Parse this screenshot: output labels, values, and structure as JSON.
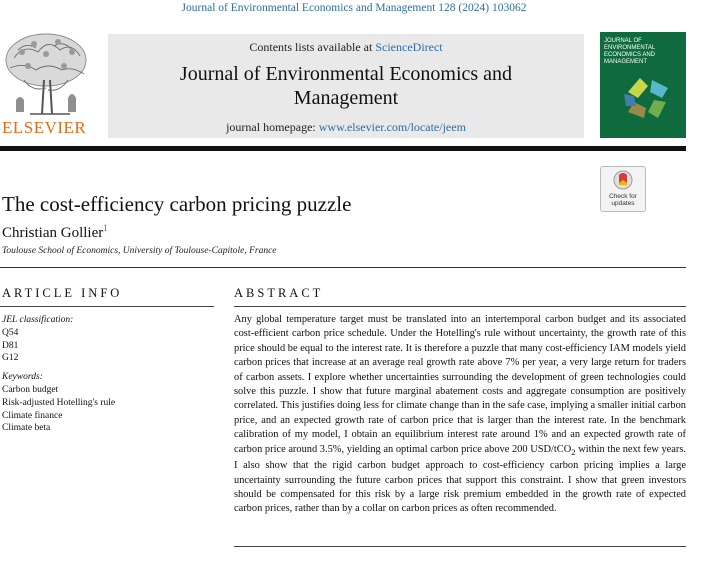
{
  "citation": {
    "text": "Journal of Environmental Economics and Management 128 (2024) 103062"
  },
  "masthead": {
    "publisher": "ELSEVIER",
    "contents_prefix": "Contents lists available at ",
    "contents_link": "ScienceDirect",
    "journal_title": "Journal of Environmental Economics and Management",
    "homepage_prefix": "journal homepage: ",
    "homepage_url": "www.elsevier.com/locate/jeem",
    "cover_title": "JOURNAL OF ENVIRONMENTAL ECONOMICS AND MANAGEMENT"
  },
  "colors": {
    "link": "#2b6ea6",
    "publisher": "#e36c1c",
    "cover": "#0f6a3d"
  },
  "check_updates": {
    "label": "Check for updates"
  },
  "article": {
    "title": "The cost-efficiency carbon pricing puzzle",
    "author": "Christian Gollier",
    "author_sup": "1",
    "affiliation": "Toulouse School of Economics, University of Toulouse-Capitole, France"
  },
  "article_info": {
    "heading": "ARTICLE INFO",
    "jel_label": "JEL classification:",
    "jel_codes": [
      "Q54",
      "D81",
      "G12"
    ],
    "keywords_label": "Keywords:",
    "keywords": [
      "Carbon budget",
      "Risk-adjusted Hotelling's rule",
      "Climate finance",
      "Climate beta"
    ]
  },
  "abstract": {
    "heading": "ABSTRACT",
    "text_1": "Any global temperature target must be translated into an intertemporal carbon budget and its associated cost-efficient carbon price schedule. Under the Hotelling's rule without uncertainty, the growth rate of this price should be equal to the interest rate. It is therefore a puzzle that many cost-efficiency IAM models yield carbon prices that increase at an average real growth rate above 7% per year, a very large return for traders of carbon assets. I explore whether uncertainties surrounding the development of green technologies could solve this puzzle. I show that future marginal abatement costs and aggregate consumption are positively correlated. This justifies doing less for climate change than in the safe case, implying a smaller initial carbon price, and an expected growth rate of carbon price that is larger than the interest rate. In the benchmark calibration of my model, I obtain an equilibrium interest rate around 1% and an expected growth rate of carbon price around 3.5%, yielding an optimal carbon price above 200 USD/tCO",
    "co2_sub": "2",
    "text_2": " within the next few years. I also show that the rigid carbon budget approach to cost-efficiency carbon pricing implies a large uncertainty surrounding the future carbon prices that support this constraint. I show that green investors should be compensated for this risk by a large risk premium embedded in the growth rate of expected carbon prices, rather than by a collar on carbon prices as often recommended."
  }
}
